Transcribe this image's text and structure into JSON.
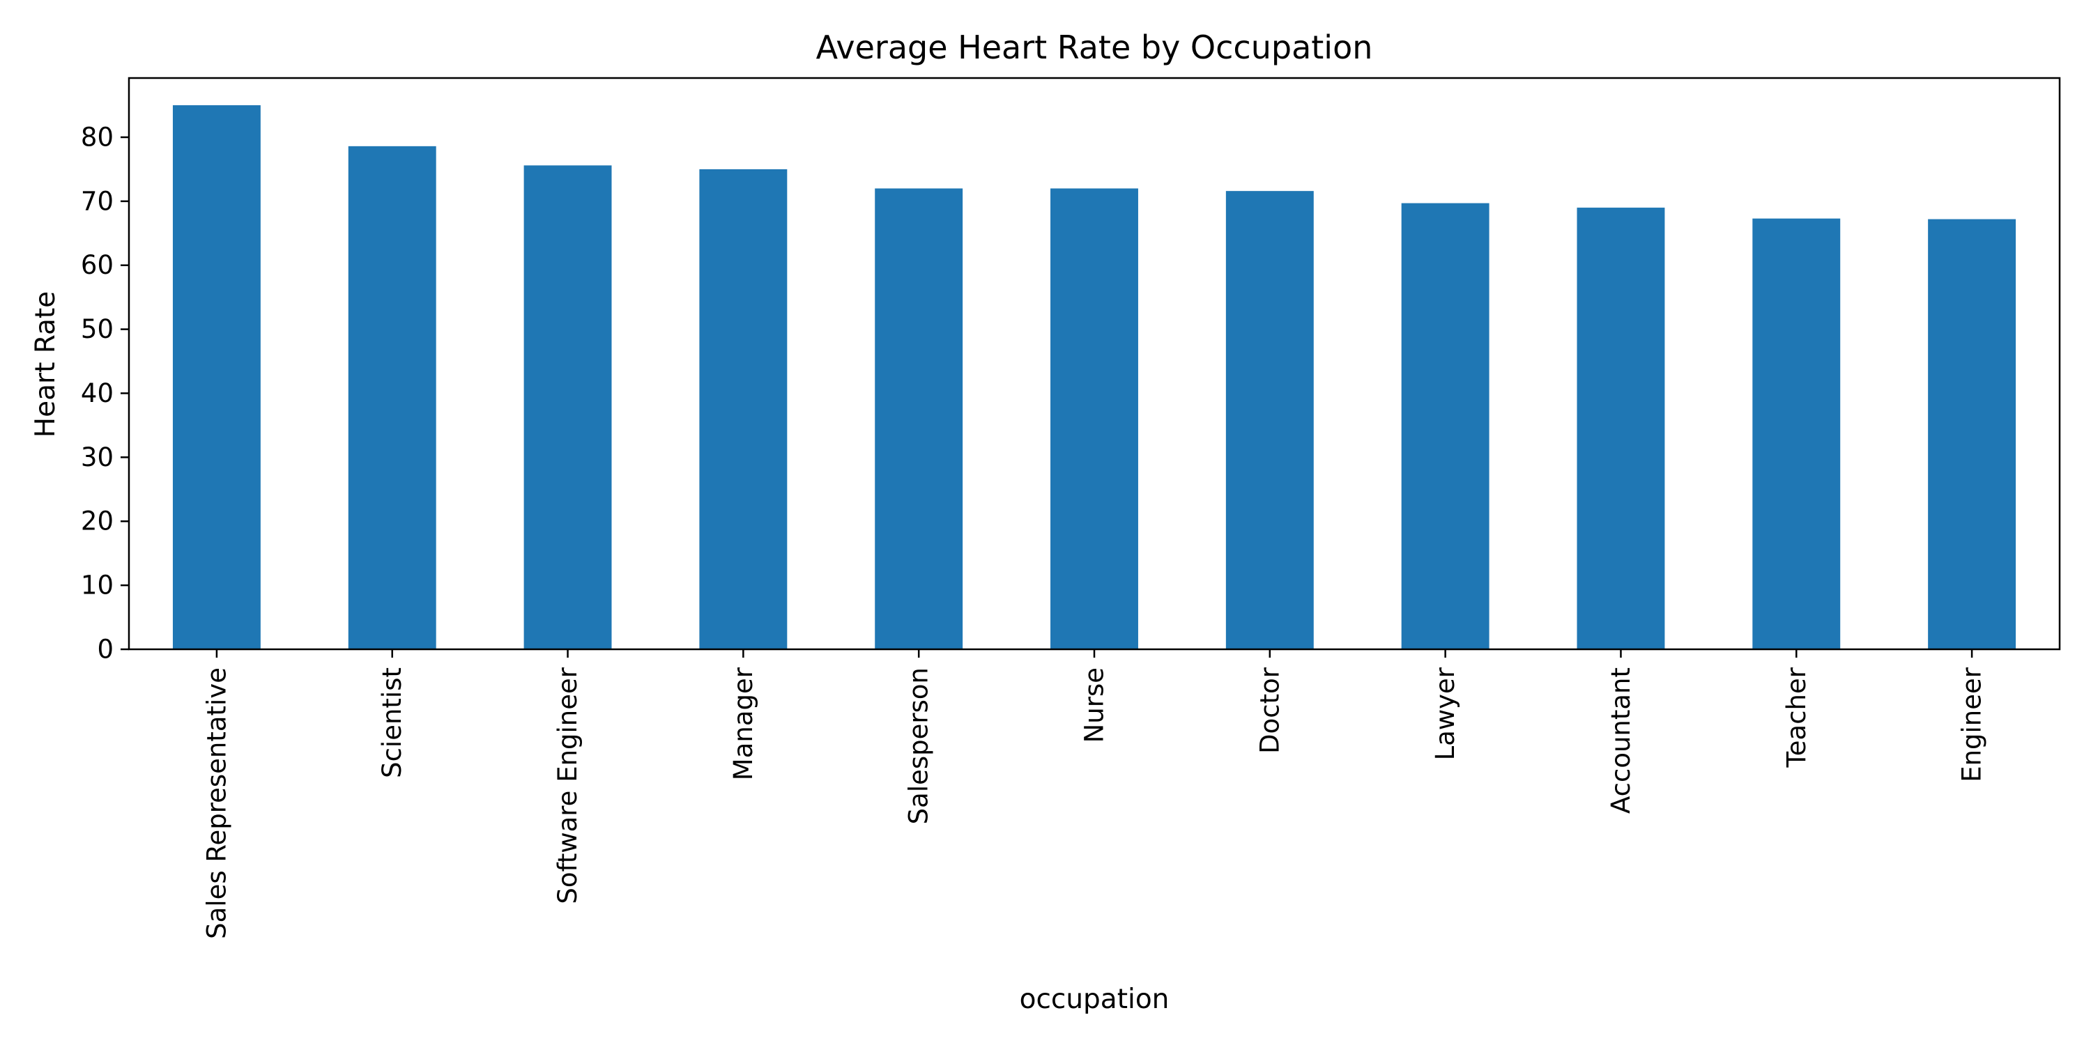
{
  "chart_data": {
    "type": "bar",
    "title": "Average Heart Rate by Occupation",
    "xlabel": "occupation",
    "ylabel": "Heart Rate",
    "categories": [
      "Sales Representative",
      "Scientist",
      "Software Engineer",
      "Manager",
      "Salesperson",
      "Nurse",
      "Doctor",
      "Lawyer",
      "Accountant",
      "Teacher",
      "Engineer"
    ],
    "values": [
      85.0,
      78.6,
      75.6,
      75.0,
      72.0,
      72.0,
      71.6,
      69.7,
      69.0,
      67.3,
      67.2
    ],
    "ylim": [
      0,
      89.25
    ],
    "yticks": [
      0,
      10,
      20,
      30,
      40,
      50,
      60,
      70,
      80
    ],
    "bar_color": "#1f77b4",
    "grid": false,
    "legend": "none"
  }
}
